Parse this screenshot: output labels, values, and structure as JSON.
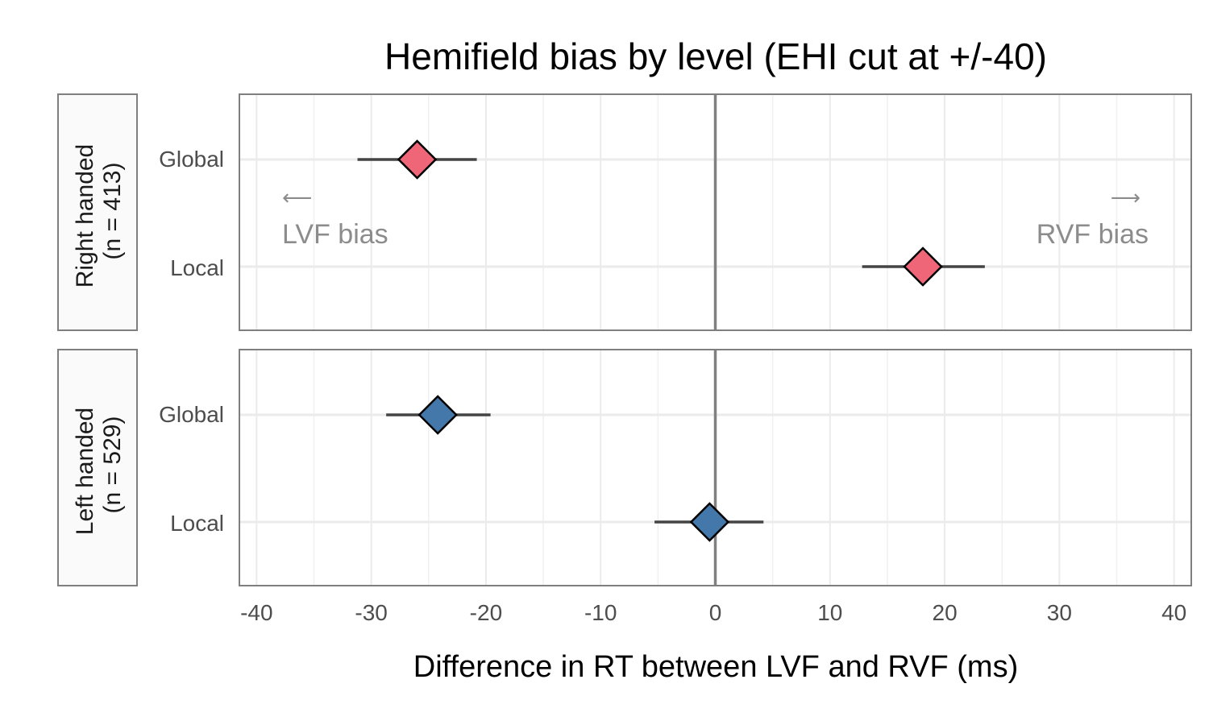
{
  "chart_data": {
    "type": "scatter",
    "title": "Hemifield bias by level (EHI cut at +/-40)",
    "xlabel": "Difference in RT between LVF and RVF (ms)",
    "ylabel": "",
    "xlim": [
      -41.5,
      41.5
    ],
    "x_ticks": [
      -40,
      -30,
      -20,
      -10,
      0,
      10,
      20,
      30,
      40
    ],
    "categories": [
      "Global",
      "Local"
    ],
    "grid": true,
    "reference_line_x": 0,
    "panels": [
      {
        "strip_label_line1": "Right handed",
        "strip_label_line2": "(n = 413)",
        "color": "#ee6677",
        "points": [
          {
            "category": "Global",
            "x": -26.0,
            "lower": -31.2,
            "upper": -20.8
          },
          {
            "category": "Local",
            "x": 18.1,
            "lower": 12.8,
            "upper": 23.5
          }
        ]
      },
      {
        "strip_label_line1": "Left handed",
        "strip_label_line2": "(n = 529)",
        "color": "#4477aa",
        "points": [
          {
            "category": "Global",
            "x": -24.2,
            "lower": -28.7,
            "upper": -19.6
          },
          {
            "category": "Local",
            "x": -0.5,
            "lower": -5.3,
            "upper": 4.2
          }
        ]
      }
    ],
    "annotations": {
      "left_arrow": "⟵",
      "left_text": "LVF bias",
      "right_arrow": "⟶",
      "right_text": "RVF bias"
    }
  }
}
